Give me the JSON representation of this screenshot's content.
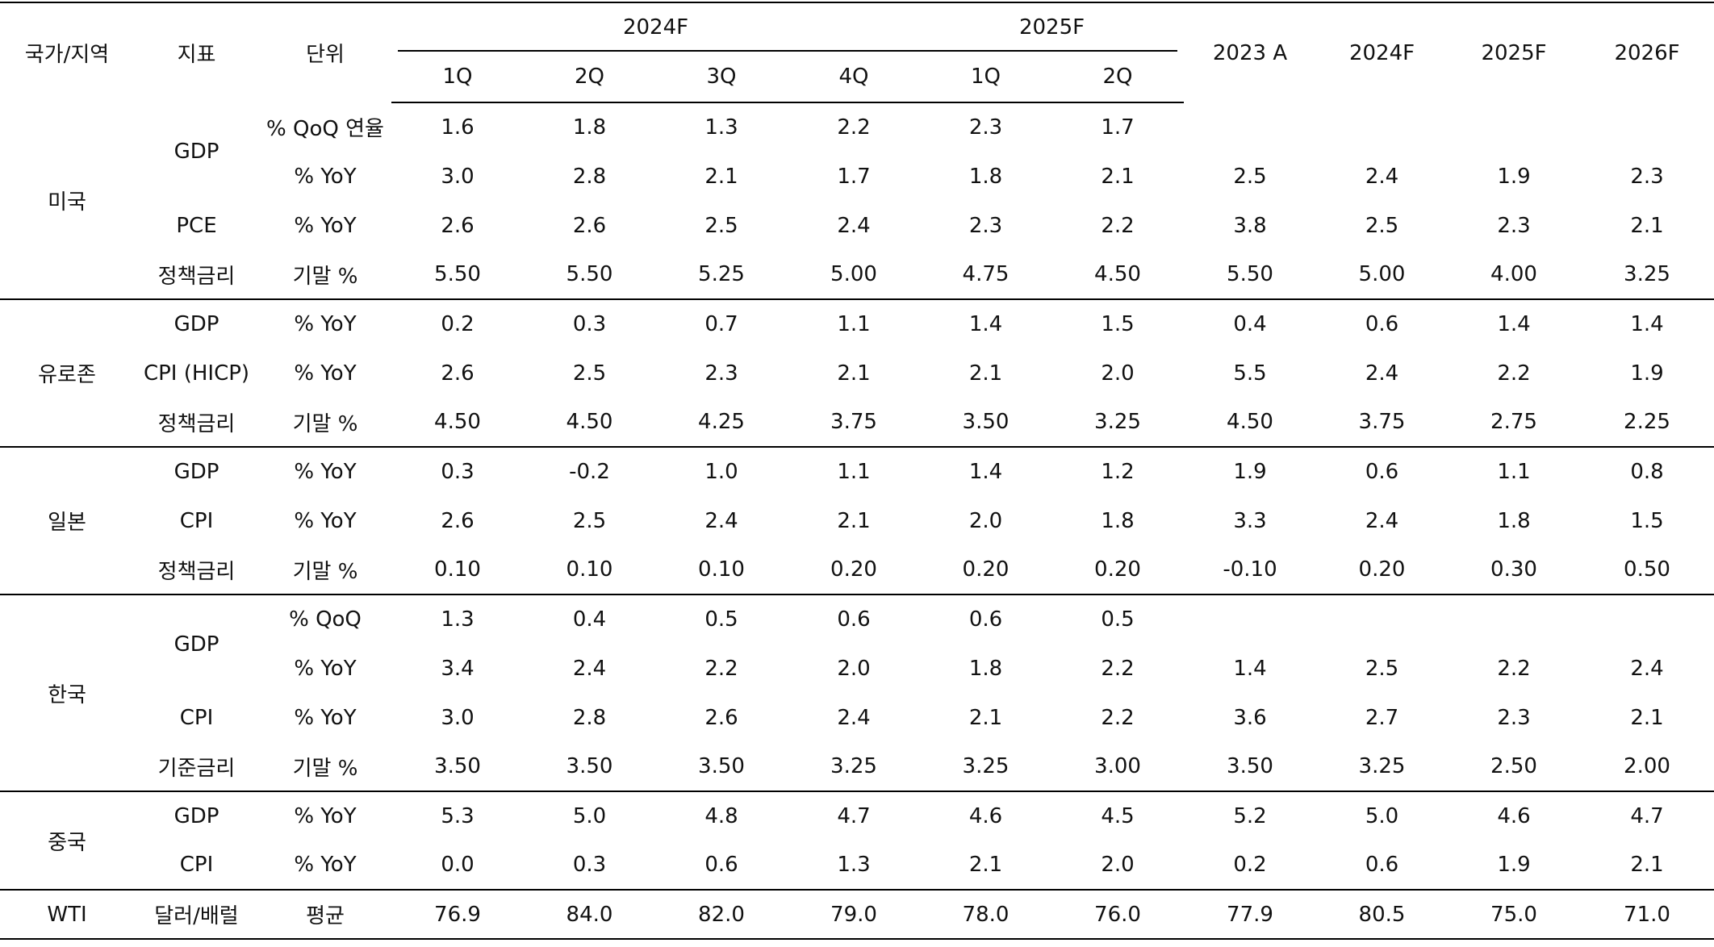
{
  "header": {
    "country": "국가/지역",
    "indicator": "지표",
    "unit": "단위",
    "year_2024f": "2024F",
    "year_2025f": "2025F",
    "quarters": [
      "1Q",
      "2Q",
      "3Q",
      "4Q",
      "1Q",
      "2Q"
    ],
    "annual": [
      "2023 A",
      "2024F",
      "2025F",
      "2026F"
    ]
  },
  "groups": [
    {
      "country": "미국",
      "rows": [
        {
          "indicator": "GDP",
          "unit": "% QoQ 연율",
          "values": [
            "1.6",
            "1.8",
            "1.3",
            "2.2",
            "2.3",
            "1.7",
            "",
            "",
            "",
            ""
          ]
        },
        {
          "indicator": "",
          "unit": "% YoY",
          "values": [
            "3.0",
            "2.8",
            "2.1",
            "1.7",
            "1.8",
            "2.1",
            "2.5",
            "2.4",
            "1.9",
            "2.3"
          ]
        },
        {
          "indicator": "PCE",
          "unit": "% YoY",
          "values": [
            "2.6",
            "2.6",
            "2.5",
            "2.4",
            "2.3",
            "2.2",
            "3.8",
            "2.5",
            "2.3",
            "2.1"
          ]
        },
        {
          "indicator": "정책금리",
          "unit": "기말 %",
          "values": [
            "5.50",
            "5.50",
            "5.25",
            "5.00",
            "4.75",
            "4.50",
            "5.50",
            "5.00",
            "4.00",
            "3.25"
          ]
        }
      ]
    },
    {
      "country": "유로존",
      "rows": [
        {
          "indicator": "GDP",
          "unit": "% YoY",
          "values": [
            "0.2",
            "0.3",
            "0.7",
            "1.1",
            "1.4",
            "1.5",
            "0.4",
            "0.6",
            "1.4",
            "1.4"
          ]
        },
        {
          "indicator": "CPI (HICP)",
          "unit": "% YoY",
          "values": [
            "2.6",
            "2.5",
            "2.3",
            "2.1",
            "2.1",
            "2.0",
            "5.5",
            "2.4",
            "2.2",
            "1.9"
          ]
        },
        {
          "indicator": "정책금리",
          "unit": "기말 %",
          "values": [
            "4.50",
            "4.50",
            "4.25",
            "3.75",
            "3.50",
            "3.25",
            "4.50",
            "3.75",
            "2.75",
            "2.25"
          ]
        }
      ]
    },
    {
      "country": "일본",
      "rows": [
        {
          "indicator": "GDP",
          "unit": "% YoY",
          "values": [
            "0.3",
            "-0.2",
            "1.0",
            "1.1",
            "1.4",
            "1.2",
            "1.9",
            "0.6",
            "1.1",
            "0.8"
          ]
        },
        {
          "indicator": "CPI",
          "unit": "% YoY",
          "values": [
            "2.6",
            "2.5",
            "2.4",
            "2.1",
            "2.0",
            "1.8",
            "3.3",
            "2.4",
            "1.8",
            "1.5"
          ]
        },
        {
          "indicator": "정책금리",
          "unit": "기말 %",
          "values": [
            "0.10",
            "0.10",
            "0.10",
            "0.20",
            "0.20",
            "0.20",
            "-0.10",
            "0.20",
            "0.30",
            "0.50"
          ]
        }
      ]
    },
    {
      "country": "한국",
      "rows": [
        {
          "indicator": "GDP",
          "unit": "% QoQ",
          "values": [
            "1.3",
            "0.4",
            "0.5",
            "0.6",
            "0.6",
            "0.5",
            "",
            "",
            "",
            ""
          ]
        },
        {
          "indicator": "",
          "unit": "% YoY",
          "values": [
            "3.4",
            "2.4",
            "2.2",
            "2.0",
            "1.8",
            "2.2",
            "1.4",
            "2.5",
            "2.2",
            "2.4"
          ]
        },
        {
          "indicator": "CPI",
          "unit": "% YoY",
          "values": [
            "3.0",
            "2.8",
            "2.6",
            "2.4",
            "2.1",
            "2.2",
            "3.6",
            "2.7",
            "2.3",
            "2.1"
          ]
        },
        {
          "indicator": "기준금리",
          "unit": "기말 %",
          "values": [
            "3.50",
            "3.50",
            "3.50",
            "3.25",
            "3.25",
            "3.00",
            "3.50",
            "3.25",
            "2.50",
            "2.00"
          ]
        }
      ]
    },
    {
      "country": "중국",
      "rows": [
        {
          "indicator": "GDP",
          "unit": "% YoY",
          "values": [
            "5.3",
            "5.0",
            "4.8",
            "4.7",
            "4.6",
            "4.5",
            "5.2",
            "5.0",
            "4.6",
            "4.7"
          ]
        },
        {
          "indicator": "CPI",
          "unit": "% YoY",
          "values": [
            "0.0",
            "0.3",
            "0.6",
            "1.3",
            "2.1",
            "2.0",
            "0.2",
            "0.6",
            "1.9",
            "2.1"
          ]
        }
      ]
    },
    {
      "country": "WTI",
      "rows": [
        {
          "indicator": "달러/배럴",
          "unit": "평균",
          "values": [
            "76.9",
            "84.0",
            "82.0",
            "79.0",
            "78.0",
            "76.0",
            "77.9",
            "80.5",
            "75.0",
            "71.0"
          ]
        }
      ]
    }
  ]
}
